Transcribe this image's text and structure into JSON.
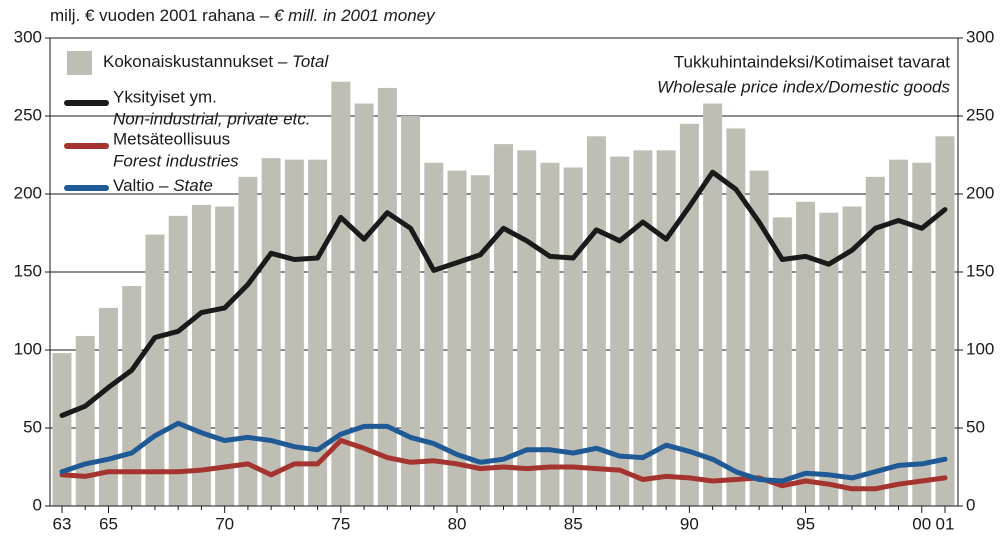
{
  "chart_data": {
    "type": "bar_line",
    "subtitle_fi": "milj. € vuoden 2001 rahana –",
    "subtitle_en": "€ mill. in 2001 money",
    "annotation_fi": "Tukkuhintaindeksi/Kotimaiset tavarat",
    "annotation_en": "Wholesale price index/Domestic goods",
    "categories": [
      "63",
      null,
      "65",
      null,
      null,
      null,
      null,
      "70",
      null,
      null,
      null,
      null,
      "75",
      null,
      null,
      null,
      null,
      "80",
      null,
      null,
      null,
      null,
      "85",
      null,
      null,
      null,
      null,
      "90",
      null,
      null,
      null,
      null,
      "95",
      null,
      null,
      null,
      null,
      "00",
      "01"
    ],
    "series": [
      {
        "name": "Kokonaiskustannukset –",
        "name_en": "Total",
        "kind": "bar",
        "color": "#bfbeb4",
        "values": [
          98,
          109,
          127,
          141,
          174,
          186,
          193,
          192,
          211,
          223,
          222,
          222,
          272,
          258,
          268,
          250,
          220,
          215,
          212,
          232,
          228,
          220,
          217,
          237,
          224,
          228,
          228,
          245,
          258,
          242,
          215,
          185,
          195,
          188,
          192,
          211,
          222,
          220,
          237
        ]
      },
      {
        "name": "Yksityiset ym.",
        "name_en": "Non-industrial, private etc.",
        "kind": "line",
        "color": "#1a1a1a",
        "values": [
          58,
          64,
          76,
          87,
          108,
          112,
          124,
          127,
          142,
          162,
          158,
          159,
          185,
          171,
          188,
          178,
          151,
          156,
          161,
          178,
          170,
          160,
          159,
          177,
          170,
          182,
          171,
          192,
          214,
          203,
          182,
          158,
          160,
          155,
          164,
          178,
          183,
          178,
          190
        ]
      },
      {
        "name": "Metsäteollisuus",
        "name_en": "Forest industries",
        "kind": "line",
        "color": "#a5332f",
        "values": [
          20,
          19,
          22,
          22,
          22,
          22,
          23,
          25,
          27,
          20,
          27,
          27,
          42,
          37,
          31,
          28,
          29,
          27,
          24,
          25,
          24,
          25,
          25,
          24,
          23,
          17,
          19,
          18,
          16,
          17,
          18,
          13,
          16,
          14,
          11,
          11,
          14,
          16,
          18
        ]
      },
      {
        "name": "Valtio –",
        "name_en": "State",
        "kind": "line",
        "color": "#1f5a96",
        "values": [
          22,
          27,
          30,
          34,
          45,
          53,
          47,
          42,
          44,
          42,
          38,
          36,
          46,
          51,
          51,
          44,
          40,
          33,
          28,
          30,
          36,
          36,
          34,
          37,
          32,
          31,
          39,
          35,
          30,
          22,
          17,
          16,
          21,
          20,
          18,
          22,
          26,
          27,
          30
        ]
      }
    ],
    "ylim": [
      0,
      300
    ],
    "yticks": [
      0,
      50,
      100,
      150,
      200,
      250,
      300
    ],
    "y2lim": [
      0,
      300
    ],
    "y2ticks": [
      0,
      50,
      100,
      150,
      200,
      250,
      300
    ],
    "grid": true
  }
}
